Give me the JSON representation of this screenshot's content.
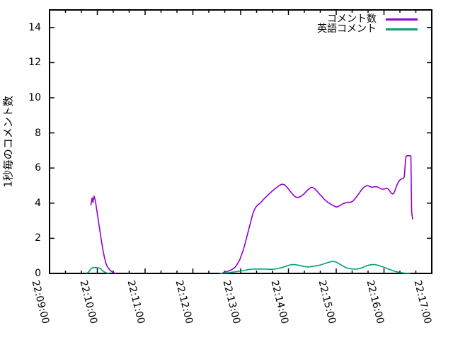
{
  "chart_data": {
    "type": "line",
    "title": "",
    "xlabel": "",
    "ylabel": "1秒毎のコメント数",
    "grid": false,
    "legend_position": "top-right-inside",
    "ylim": [
      0,
      15
    ],
    "y_ticks": [
      0,
      2,
      4,
      6,
      8,
      10,
      12,
      14
    ],
    "xlim_seconds": [
      0,
      480
    ],
    "x_tick_seconds": [
      0,
      60,
      120,
      180,
      240,
      300,
      360,
      420,
      480
    ],
    "x_tick_labels": [
      "22:09:00",
      "22:10:00",
      "22:11:00",
      "22:12:00",
      "22:13:00",
      "22:14:00",
      "22:15:00",
      "22:16:00",
      "22:17:00"
    ],
    "x_minor_interval_seconds": 20,
    "axis_color": "#000000",
    "background_color": "#ffffff",
    "series": [
      {
        "name": "コメント数",
        "color": "#9400d3",
        "segments": [
          [
            [
              52,
              3.9
            ],
            [
              53.5,
              4.3
            ],
            [
              54.5,
              4.05
            ],
            [
              56,
              4.4
            ],
            [
              57.5,
              4.15
            ],
            [
              59,
              3.7
            ],
            [
              61,
              3.1
            ],
            [
              63,
              2.5
            ],
            [
              65,
              1.9
            ],
            [
              67,
              1.35
            ],
            [
              69,
              0.9
            ],
            [
              71,
              0.55
            ],
            [
              73,
              0.35
            ],
            [
              76,
              0.18
            ],
            [
              79,
              0.07
            ],
            [
              83,
              0
            ]
          ],
          [
            [
              218,
              0.05
            ],
            [
              224,
              0.12
            ],
            [
              229,
              0.22
            ],
            [
              233,
              0.35
            ],
            [
              236,
              0.55
            ],
            [
              239,
              0.8
            ],
            [
              241,
              1.05
            ],
            [
              243,
              1.3
            ],
            [
              245,
              1.6
            ],
            [
              247,
              1.95
            ],
            [
              249,
              2.3
            ],
            [
              251,
              2.65
            ],
            [
              253,
              3.0
            ],
            [
              255,
              3.35
            ],
            [
              257,
              3.6
            ],
            [
              259,
              3.78
            ],
            [
              261,
              3.88
            ],
            [
              264,
              3.98
            ],
            [
              267,
              4.12
            ],
            [
              270,
              4.28
            ],
            [
              274,
              4.45
            ],
            [
              278,
              4.62
            ],
            [
              282,
              4.78
            ],
            [
              286,
              4.92
            ],
            [
              289,
              5.02
            ],
            [
              292,
              5.08
            ],
            [
              295,
              5.05
            ],
            [
              298,
              4.92
            ],
            [
              301,
              4.75
            ],
            [
              304,
              4.58
            ],
            [
              307,
              4.42
            ],
            [
              310,
              4.33
            ],
            [
              313,
              4.33
            ],
            [
              316,
              4.4
            ],
            [
              319,
              4.5
            ],
            [
              322,
              4.65
            ],
            [
              325,
              4.78
            ],
            [
              328,
              4.88
            ],
            [
              330,
              4.9
            ],
            [
              333,
              4.82
            ],
            [
              336,
              4.68
            ],
            [
              339,
              4.52
            ],
            [
              342,
              4.38
            ],
            [
              345,
              4.22
            ],
            [
              348,
              4.1
            ],
            [
              351,
              4.0
            ],
            [
              354,
              3.92
            ],
            [
              357,
              3.85
            ],
            [
              360,
              3.78
            ],
            [
              363,
              3.82
            ],
            [
              366,
              3.9
            ],
            [
              369,
              3.98
            ],
            [
              372,
              4.02
            ],
            [
              375,
              4.05
            ],
            [
              378,
              4.05
            ],
            [
              381,
              4.12
            ],
            [
              384,
              4.28
            ],
            [
              387,
              4.45
            ],
            [
              390,
              4.65
            ],
            [
              393,
              4.82
            ],
            [
              396,
              4.95
            ],
            [
              399,
              5.0
            ],
            [
              402,
              4.95
            ],
            [
              405,
              4.9
            ],
            [
              408,
              4.93
            ],
            [
              411,
              4.93
            ],
            [
              414,
              4.88
            ],
            [
              417,
              4.8
            ],
            [
              420,
              4.8
            ],
            [
              423,
              4.85
            ],
            [
              425,
              4.82
            ],
            [
              427,
              4.7
            ],
            [
              429,
              4.58
            ],
            [
              431,
              4.52
            ],
            [
              432.5,
              4.58
            ],
            [
              434,
              4.75
            ],
            [
              436,
              5.0
            ],
            [
              438,
              5.2
            ],
            [
              440,
              5.32
            ],
            [
              442,
              5.38
            ],
            [
              444,
              5.4
            ],
            [
              445.5,
              5.5
            ],
            [
              446.5,
              6.1
            ],
            [
              447.5,
              6.62
            ],
            [
              449,
              6.7
            ],
            [
              452,
              6.7
            ],
            [
              453.8,
              6.68
            ],
            [
              454.4,
              4.5
            ],
            [
              454.8,
              3.5
            ],
            [
              455.4,
              3.3
            ],
            [
              456,
              3.1
            ]
          ]
        ]
      },
      {
        "name": "英語コメント",
        "color": "#009e73",
        "segments": [
          [
            [
              46,
              0
            ],
            [
              49,
              0.08
            ],
            [
              51,
              0.2
            ],
            [
              53,
              0.3
            ],
            [
              55,
              0.33
            ],
            [
              58,
              0.33
            ],
            [
              61,
              0.32
            ],
            [
              64,
              0.28
            ],
            [
              66,
              0.18
            ],
            [
              68,
              0.1
            ],
            [
              71,
              0.04
            ],
            [
              74,
              0
            ]
          ],
          [
            [
              214,
              0
            ],
            [
              220,
              0.02
            ],
            [
              226,
              0.05
            ],
            [
              231,
              0.08
            ],
            [
              236,
              0.11
            ],
            [
              241,
              0.14
            ],
            [
              246,
              0.18
            ],
            [
              250,
              0.22
            ],
            [
              254,
              0.24
            ],
            [
              260,
              0.25
            ],
            [
              266,
              0.25
            ],
            [
              272,
              0.24
            ],
            [
              277,
              0.23
            ],
            [
              282,
              0.24
            ],
            [
              287,
              0.28
            ],
            [
              292,
              0.34
            ],
            [
              296,
              0.4
            ],
            [
              300,
              0.46
            ],
            [
              304,
              0.5
            ],
            [
              308,
              0.5
            ],
            [
              312,
              0.47
            ],
            [
              316,
              0.43
            ],
            [
              320,
              0.39
            ],
            [
              324,
              0.37
            ],
            [
              328,
              0.38
            ],
            [
              332,
              0.41
            ],
            [
              336,
              0.44
            ],
            [
              340,
              0.48
            ],
            [
              344,
              0.54
            ],
            [
              348,
              0.6
            ],
            [
              352,
              0.65
            ],
            [
              355,
              0.68
            ],
            [
              358,
              0.67
            ],
            [
              361,
              0.62
            ],
            [
              364,
              0.54
            ],
            [
              367,
              0.46
            ],
            [
              370,
              0.38
            ],
            [
              373,
              0.32
            ],
            [
              377,
              0.27
            ],
            [
              381,
              0.25
            ],
            [
              385,
              0.24
            ],
            [
              389,
              0.27
            ],
            [
              393,
              0.33
            ],
            [
              397,
              0.41
            ],
            [
              401,
              0.47
            ],
            [
              405,
              0.5
            ],
            [
              409,
              0.5
            ],
            [
              413,
              0.46
            ],
            [
              417,
              0.4
            ],
            [
              421,
              0.33
            ],
            [
              425,
              0.26
            ],
            [
              429,
              0.19
            ],
            [
              433,
              0.13
            ],
            [
              437,
              0.08
            ],
            [
              441,
              0.05
            ],
            [
              445,
              0.02
            ],
            [
              449,
              0.01
            ],
            [
              452,
              0
            ]
          ]
        ]
      }
    ]
  }
}
